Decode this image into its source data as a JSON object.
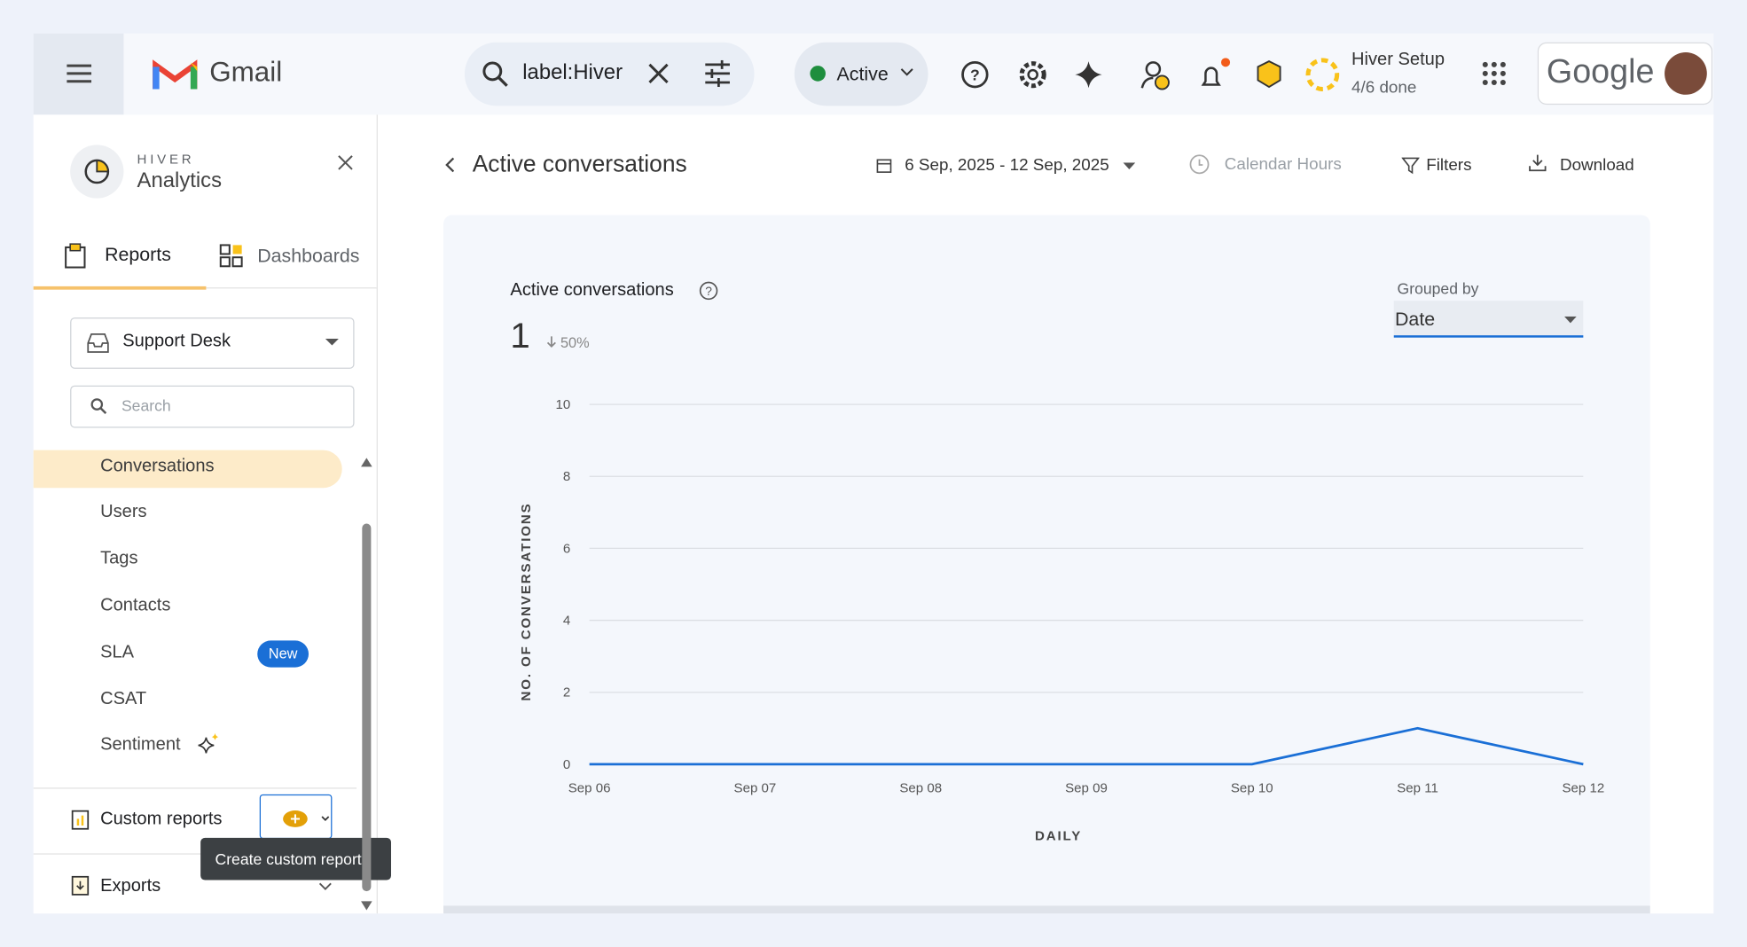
{
  "topbar": {
    "app_name": "Gmail",
    "search_query": "label:Hiver",
    "status": "Active",
    "setup_title": "Hiver Setup",
    "setup_progress": "4/6 done",
    "account_brand": "Google"
  },
  "sidebar": {
    "brand": "HIVER",
    "product": "Analytics",
    "tabs": [
      "Reports",
      "Dashboards"
    ],
    "inbox": "Support Desk",
    "search_placeholder": "Search",
    "nav": [
      "Conversations",
      "Users",
      "Tags",
      "Contacts",
      "SLA",
      "CSAT",
      "Sentiment"
    ],
    "badge": "New",
    "custom_reports": "Custom reports",
    "tooltip": "Create custom report",
    "exports": "Exports"
  },
  "header": {
    "title": "Active conversations",
    "date_range": "6 Sep, 2025 - 12 Sep, 2025",
    "hours": "Calendar Hours",
    "filters": "Filters",
    "download": "Download"
  },
  "card": {
    "title": "Active conversations",
    "metric": 1,
    "change": "50%",
    "grouped_by_label": "Grouped by",
    "grouped_by": "Date"
  },
  "chart_data": {
    "type": "line",
    "categories": [
      "Sep 06",
      "Sep 07",
      "Sep 08",
      "Sep 09",
      "Sep 10",
      "Sep 11",
      "Sep 12"
    ],
    "values": [
      0,
      0,
      0,
      0,
      0,
      1,
      0
    ],
    "color": "#1a6fd6",
    "xlabel": "DAILY",
    "ylabel": "NO. OF CONVERSATIONS",
    "ylim": [
      0,
      10
    ],
    "yticks": [
      0,
      2,
      4,
      6,
      8,
      10
    ],
    "grid": true
  }
}
